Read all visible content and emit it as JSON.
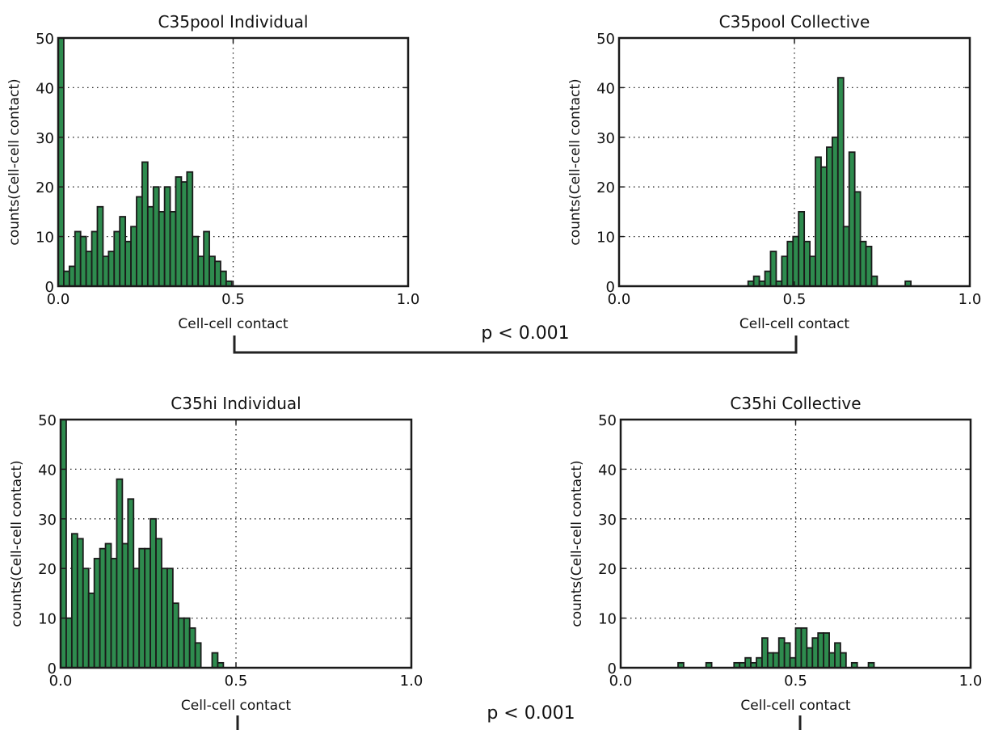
{
  "figure": {
    "comparisons": [
      {
        "label": "p < 0.001"
      },
      {
        "label": "p < 0.001"
      }
    ]
  },
  "chart_data": [
    {
      "type": "bar",
      "title": "C35pool Individual",
      "xlabel": "Cell-cell contact",
      "ylabel": "counts(Cell-cell contact)",
      "xlim": [
        0.0,
        1.0
      ],
      "ylim": [
        0,
        50
      ],
      "xticks": [
        "0.0",
        "0.5",
        "1.0"
      ],
      "yticks": [
        "0",
        "10",
        "20",
        "30",
        "40",
        "50"
      ],
      "grid": true,
      "reference_line_x": 0.5,
      "bin_width": 0.016,
      "bar_color": "#2e8b4e",
      "bins": [
        0.0,
        0.016,
        0.032,
        0.048,
        0.064,
        0.08,
        0.096,
        0.112,
        0.128,
        0.144,
        0.16,
        0.176,
        0.192,
        0.208,
        0.224,
        0.24,
        0.256,
        0.272,
        0.288,
        0.304,
        0.32,
        0.336,
        0.352,
        0.368,
        0.384,
        0.4,
        0.416,
        0.432,
        0.448,
        0.464,
        0.48,
        0.496,
        0.512,
        0.528,
        0.544,
        0.56,
        0.576,
        0.592
      ],
      "values": [
        50,
        3,
        4,
        11,
        10,
        7,
        11,
        16,
        6,
        7,
        11,
        14,
        9,
        12,
        18,
        25,
        16,
        20,
        15,
        20,
        15,
        22,
        21,
        23,
        10,
        6,
        11,
        6,
        5,
        3,
        1,
        0,
        0,
        0,
        0,
        0,
        0,
        0
      ]
    },
    {
      "type": "bar",
      "title": "C35pool Collective",
      "xlabel": "Cell-cell contact",
      "ylabel": "counts(Cell-cell contact)",
      "xlim": [
        0.0,
        1.0
      ],
      "ylim": [
        0,
        50
      ],
      "xticks": [
        "0.0",
        "0.5",
        "1.0"
      ],
      "yticks": [
        "0",
        "10",
        "20",
        "30",
        "40",
        "50"
      ],
      "grid": true,
      "reference_line_x": 0.5,
      "bin_width": 0.016,
      "bar_color": "#2e8b4e",
      "bins": [
        0.368,
        0.384,
        0.4,
        0.416,
        0.432,
        0.448,
        0.464,
        0.48,
        0.496,
        0.512,
        0.528,
        0.544,
        0.56,
        0.576,
        0.592,
        0.608,
        0.624,
        0.64,
        0.656,
        0.672,
        0.688,
        0.704,
        0.72,
        0.736,
        0.752,
        0.768,
        0.784,
        0.8,
        0.816,
        0.832,
        0.848
      ],
      "values": [
        1,
        2,
        1,
        3,
        7,
        1,
        6,
        9,
        10,
        15,
        9,
        6,
        26,
        24,
        28,
        30,
        42,
        12,
        27,
        19,
        9,
        8,
        2,
        0,
        0,
        0,
        0,
        0,
        1,
        0,
        0
      ]
    },
    {
      "type": "bar",
      "title": "C35hi Individual",
      "xlabel": "Cell-cell contact",
      "ylabel": "counts(Cell-cell contact)",
      "xlim": [
        0.0,
        1.0
      ],
      "ylim": [
        0,
        50
      ],
      "xticks": [
        "0.0",
        "0.5",
        "1.0"
      ],
      "yticks": [
        "0",
        "10",
        "20",
        "30",
        "40",
        "50"
      ],
      "grid": true,
      "reference_line_x": 0.5,
      "bin_width": 0.016,
      "bar_color": "#2e8b4e",
      "bins": [
        0.0,
        0.016,
        0.032,
        0.048,
        0.064,
        0.08,
        0.096,
        0.112,
        0.128,
        0.144,
        0.16,
        0.176,
        0.192,
        0.208,
        0.224,
        0.24,
        0.256,
        0.272,
        0.288,
        0.304,
        0.32,
        0.336,
        0.352,
        0.368,
        0.384,
        0.4,
        0.416,
        0.432,
        0.448,
        0.464,
        0.48,
        0.496,
        0.512,
        0.528,
        0.544,
        0.56
      ],
      "values": [
        50,
        10,
        27,
        26,
        20,
        15,
        22,
        24,
        25,
        22,
        38,
        25,
        34,
        20,
        24,
        24,
        30,
        26,
        20,
        20,
        13,
        10,
        10,
        8,
        5,
        0,
        0,
        3,
        1,
        0,
        0,
        0,
        0,
        0,
        0,
        0
      ]
    },
    {
      "type": "bar",
      "title": "C35hi Collective",
      "xlabel": "Cell-cell contact",
      "ylabel": "counts(Cell-cell contact)",
      "xlim": [
        0.0,
        1.0
      ],
      "ylim": [
        0,
        50
      ],
      "xticks": [
        "0.0",
        "0.5",
        "1.0"
      ],
      "yticks": [
        "0",
        "10",
        "20",
        "30",
        "40",
        "50"
      ],
      "grid": true,
      "reference_line_x": 0.5,
      "bin_width": 0.016,
      "bar_color": "#2e8b4e",
      "bins": [
        0.148,
        0.164,
        0.18,
        0.196,
        0.212,
        0.228,
        0.244,
        0.26,
        0.276,
        0.292,
        0.308,
        0.324,
        0.34,
        0.356,
        0.372,
        0.388,
        0.404,
        0.42,
        0.436,
        0.452,
        0.468,
        0.484,
        0.5,
        0.516,
        0.532,
        0.548,
        0.564,
        0.58,
        0.596,
        0.612,
        0.628,
        0.644,
        0.66,
        0.676,
        0.692,
        0.708,
        0.724,
        0.74
      ],
      "values": [
        0,
        1,
        0,
        0,
        0,
        0,
        1,
        0,
        0,
        0,
        0,
        1,
        1,
        2,
        1,
        2,
        6,
        3,
        3,
        6,
        5,
        2,
        8,
        8,
        4,
        6,
        7,
        7,
        3,
        5,
        3,
        0,
        1,
        0,
        0,
        1,
        0,
        0
      ]
    }
  ]
}
